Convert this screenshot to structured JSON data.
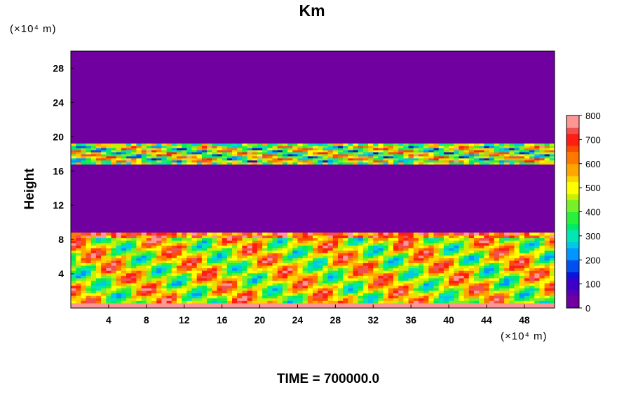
{
  "title": "Km",
  "y_unit_label": "(×10⁴ m)",
  "x_unit_label": "(×10⁴ m)",
  "ylabel": "Height",
  "time_label": "TIME = 700000.0",
  "colors": {
    "background_field": "#7000a0",
    "colormap": [
      "#7000a0",
      "#5a00b4",
      "#3c00c8",
      "#0a14dc",
      "#0050f0",
      "#0096ff",
      "#00c8e6",
      "#00e6b4",
      "#00eb64",
      "#28f03c",
      "#78f028",
      "#c8f000",
      "#ffff00",
      "#ffd200",
      "#ffa500",
      "#ff7800",
      "#ff4b00",
      "#ff1e14",
      "#f05050",
      "#ff9696"
    ]
  },
  "chart_data": {
    "type": "heatmap",
    "title": "Km",
    "xlabel": "",
    "ylabel": "Height",
    "x_ticks": [
      4,
      8,
      12,
      16,
      20,
      24,
      28,
      32,
      36,
      40,
      44,
      48
    ],
    "y_ticks": [
      4,
      8,
      12,
      16,
      20,
      24,
      28
    ],
    "xlim": [
      0,
      51.2
    ],
    "ylim": [
      0,
      30
    ],
    "colorbar": {
      "min": 0,
      "max": 800,
      "ticks": [
        0,
        100,
        200,
        300,
        400,
        500,
        600,
        700,
        800
      ]
    },
    "layers": [
      {
        "y_range": [
          0,
          8.8
        ],
        "value_range": [
          200,
          800
        ]
      },
      {
        "y_range": [
          16.8,
          19.2
        ],
        "value_range": [
          100,
          800
        ]
      }
    ],
    "background_value": 0
  }
}
